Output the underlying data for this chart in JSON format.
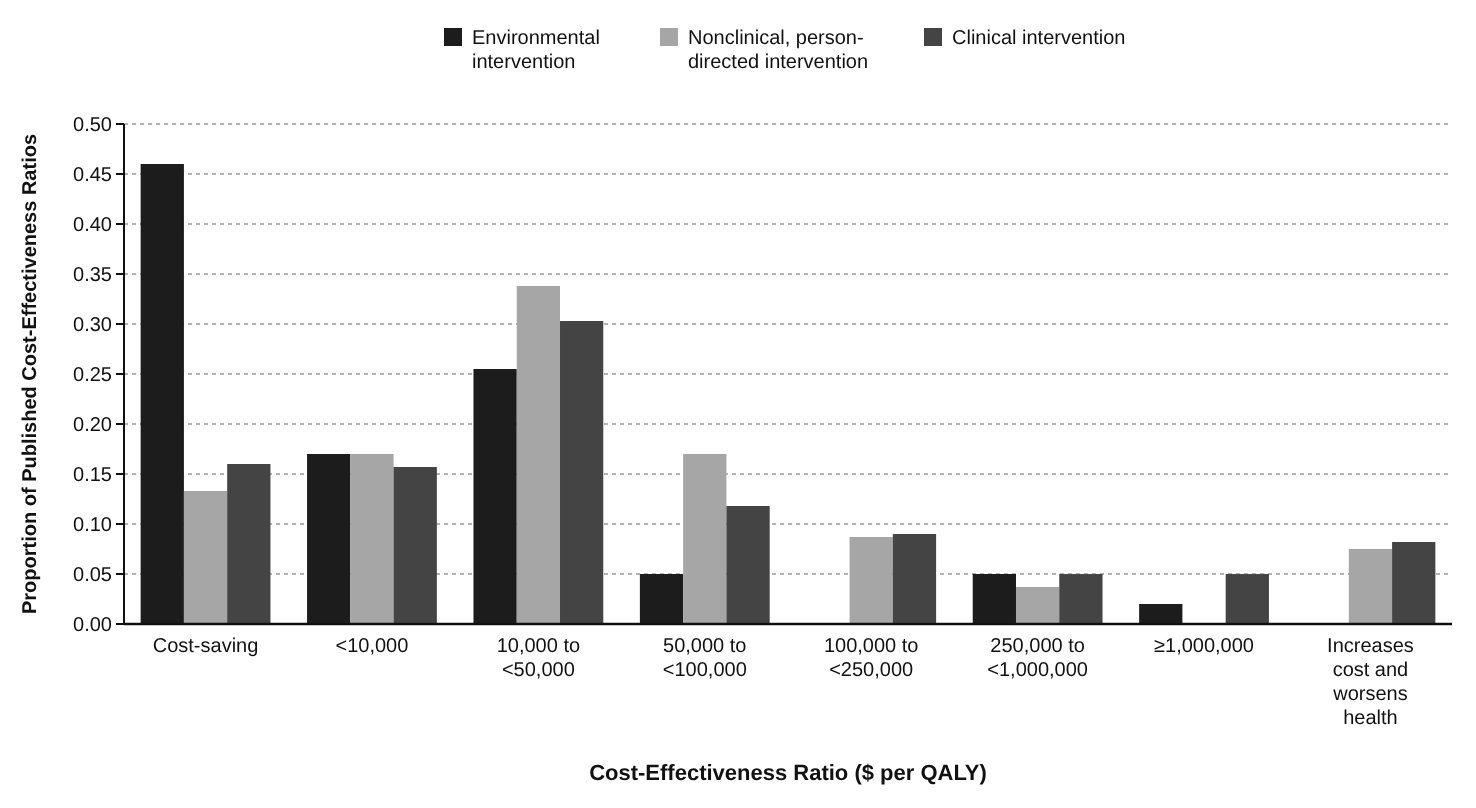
{
  "chart_data": {
    "type": "bar",
    "xlabel": "Cost-Effectiveness Ratio ($ per QALY)",
    "ylabel": "Proportion of Published Cost-Effectiveness Ratios",
    "categories": [
      "Cost-saving",
      "<10,000",
      "10,000 to\n<50,000",
      "50,000 to\n<100,000",
      "100,000 to\n<250,000",
      "250,000 to\n<1,000,000",
      "≥1,000,000",
      "Increases\ncost and\nworsens\nhealth"
    ],
    "series": [
      {
        "name": "Environmental\nintervention",
        "color": "#1c1c1c",
        "values": [
          0.46,
          0.17,
          0.255,
          0.05,
          0,
          0.05,
          0.02,
          0
        ]
      },
      {
        "name": "Nonclinical, person-\ndirected intervention",
        "color": "#a6a6a6",
        "values": [
          0.133,
          0.17,
          0.338,
          0.17,
          0.087,
          0.037,
          0,
          0.075
        ]
      },
      {
        "name": "Clinical intervention",
        "color": "#444444",
        "values": [
          0.16,
          0.157,
          0.303,
          0.118,
          0.09,
          0.05,
          0.05,
          0.082
        ]
      }
    ],
    "ylim": [
      0,
      0.5
    ],
    "yticks": [
      {
        "value": 0,
        "label": "0.00"
      },
      {
        "value": 0.05,
        "label": "0.05"
      },
      {
        "value": 0.1,
        "label": "0.10"
      },
      {
        "value": 0.15,
        "label": "0.15"
      },
      {
        "value": 0.2,
        "label": "0.20"
      },
      {
        "value": 0.25,
        "label": "0.25"
      },
      {
        "value": 0.3,
        "label": "0.30"
      },
      {
        "value": 0.35,
        "label": "0.35"
      },
      {
        "value": 0.4,
        "label": "0.40"
      },
      {
        "value": 0.45,
        "label": "0.45"
      },
      {
        "value": 0.5,
        "label": "0.50"
      }
    ],
    "grid": "y",
    "legend": "top"
  }
}
